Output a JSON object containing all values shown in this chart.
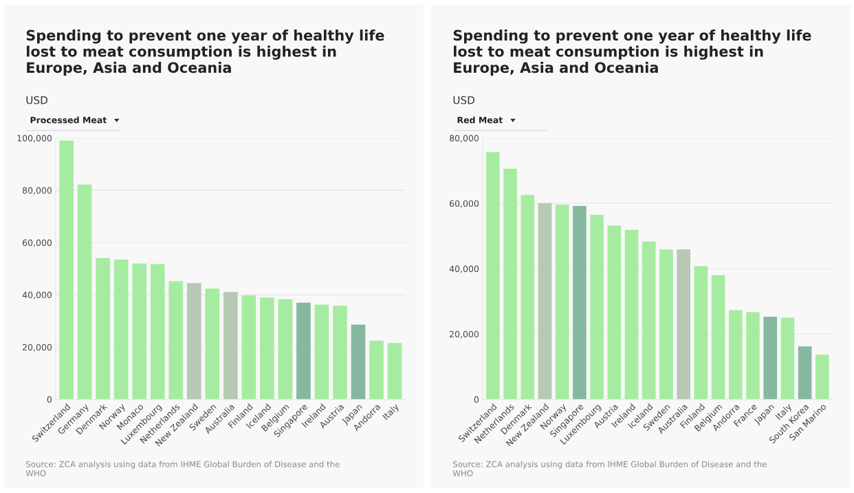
{
  "chart_data": [
    {
      "type": "bar",
      "title": "Spending to prevent one year of healthy life lost to meat consumption is highest in Europe, Asia and Oceania",
      "subtitle": "USD",
      "annotations": [
        "Processed Meat",
        "Source: ZCA analysis using data from IHME Global Burden of Disease and the WHO"
      ],
      "categories": [
        "Switzerland",
        "Germany",
        "Denmark",
        "Norway",
        "Monaco",
        "Luxembourg",
        "Netherlands",
        "New Zealand",
        "Sweden",
        "Australia",
        "Finland",
        "Iceland",
        "Belgium",
        "Singapore",
        "Ireland",
        "Austria",
        "Japan",
        "Andorra",
        "Italy"
      ],
      "values": [
        99000,
        82200,
        54100,
        53500,
        52000,
        51800,
        45200,
        44500,
        42400,
        41100,
        39800,
        39000,
        38300,
        37000,
        36200,
        35800,
        28600,
        22400,
        21600
      ],
      "colors": [
        "#a6eca0",
        "#a6eca0",
        "#a6eca0",
        "#a6eca0",
        "#a6eca0",
        "#a6eca0",
        "#a6eca0",
        "#b7c9b4",
        "#a6eca0",
        "#b7c9b4",
        "#a6eca0",
        "#a6eca0",
        "#a6eca0",
        "#86b89f",
        "#a6eca0",
        "#a6eca0",
        "#86b89f",
        "#a6eca0",
        "#a6eca0"
      ],
      "ylim": [
        0,
        100000
      ],
      "yticks": [
        {
          "value": 0,
          "label": "0"
        },
        {
          "value": 20000,
          "label": "20,000"
        },
        {
          "value": 40000,
          "label": "40,000"
        },
        {
          "value": 60000,
          "label": "60,000"
        },
        {
          "value": 80000,
          "label": "80,000"
        },
        {
          "value": 100000,
          "label": "100,000"
        }
      ],
      "grid": "y"
    },
    {
      "type": "bar",
      "title": "Spending to prevent one year of healthy life lost to meat consumption is highest in Europe, Asia and Oceania",
      "subtitle": "USD",
      "annotations": [
        "Red Meat",
        "Source: ZCA analysis using data from IHME Global Burden of Disease and the WHO"
      ],
      "categories": [
        "Switzerland",
        "Netherlands",
        "Denmark",
        "New Zealand",
        "Norway",
        "Singapore",
        "Luxembourg",
        "Austria",
        "Ireland",
        "Iceland",
        "Sweden",
        "Australia",
        "Finland",
        "Belgium",
        "Andorra",
        "France",
        "Japan",
        "Italy",
        "South Korea",
        "San Marino"
      ],
      "values": [
        75700,
        70600,
        62600,
        60100,
        59600,
        59200,
        56500,
        53200,
        51900,
        48300,
        45900,
        45900,
        40800,
        38000,
        27300,
        26700,
        25300,
        25000,
        16200,
        13700
      ],
      "colors": [
        "#a6eca0",
        "#a6eca0",
        "#a6eca0",
        "#b7c9b4",
        "#a6eca0",
        "#86b89f",
        "#a6eca0",
        "#a6eca0",
        "#a6eca0",
        "#a6eca0",
        "#a6eca0",
        "#b7c9b4",
        "#a6eca0",
        "#a6eca0",
        "#a6eca0",
        "#a6eca0",
        "#86b89f",
        "#a6eca0",
        "#86b89f",
        "#a6eca0"
      ],
      "ylim": [
        0,
        80000
      ],
      "yticks": [
        {
          "value": 0,
          "label": "0"
        },
        {
          "value": 20000,
          "label": "20,000"
        },
        {
          "value": 40000,
          "label": "40,000"
        },
        {
          "value": 60000,
          "label": "60,000"
        },
        {
          "value": 80000,
          "label": "80,000"
        }
      ],
      "grid": "y"
    }
  ]
}
